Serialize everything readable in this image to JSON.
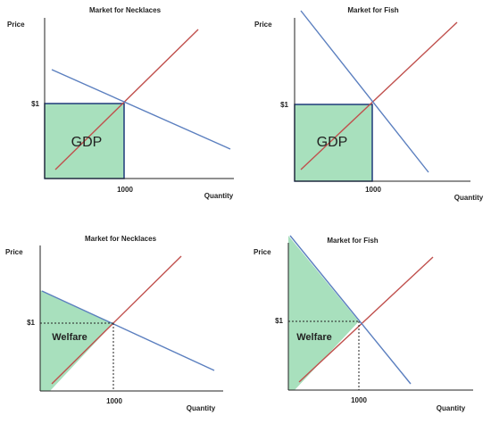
{
  "panels": [
    {
      "title": "Market for Necklaces",
      "y_label": "Price",
      "x_label": "Quantity",
      "price_label": "$1",
      "quantity_label": "1000",
      "area_label": "GDP"
    },
    {
      "title": "Market for Fish",
      "y_label": "Price",
      "x_label": "Quantity",
      "price_label": "$1",
      "quantity_label": "1000",
      "area_label": "GDP"
    },
    {
      "title": "Market for Necklaces",
      "y_label": "Price",
      "x_label": "Quantity",
      "price_label": "$1",
      "quantity_label": "1000",
      "area_label": "Welfare"
    },
    {
      "title": "Market for Fish",
      "y_label": "Price",
      "x_label": "Quantity",
      "price_label": "$1",
      "quantity_label": "1000",
      "area_label": "Welfare"
    }
  ]
}
